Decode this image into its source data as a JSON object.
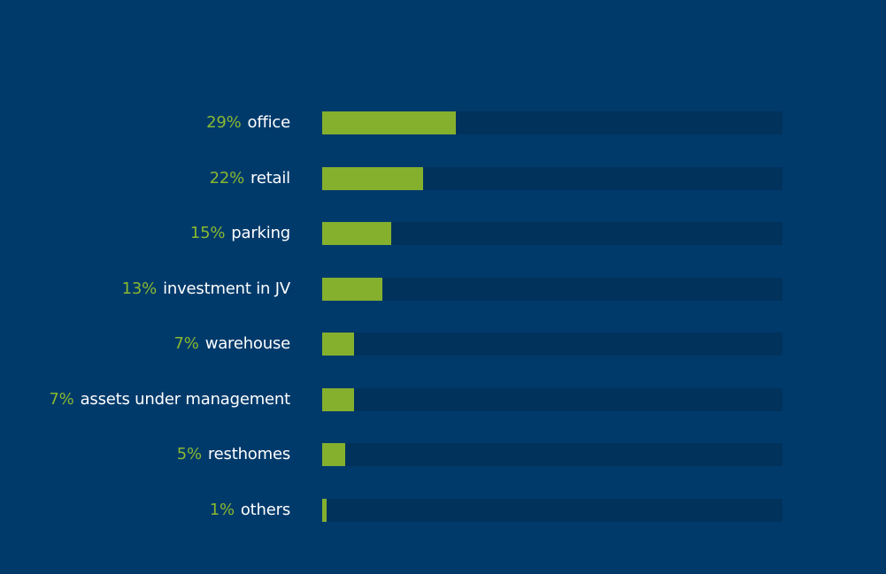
{
  "chart_data": {
    "type": "bar",
    "orientation": "horizontal",
    "categories": [
      "office",
      "retail",
      "parking",
      "investment in JV",
      "warehouse",
      "assets under management",
      "resthomes",
      "others"
    ],
    "value_labels": [
      "29%",
      "22%",
      "15%",
      "13%",
      "7%",
      "7%",
      "5%",
      "1%"
    ],
    "values": [
      29,
      22,
      15,
      13,
      7,
      7,
      5,
      1
    ],
    "xlim": [
      0,
      100
    ],
    "title": "",
    "xlabel": "",
    "ylabel": "",
    "grid": false,
    "legend": "none",
    "colors": {
      "background": "#003a6b",
      "track": "#00325c",
      "bar": "#84b02e",
      "percent_text": "#8ab82f",
      "category_text": "#ffffff"
    }
  }
}
